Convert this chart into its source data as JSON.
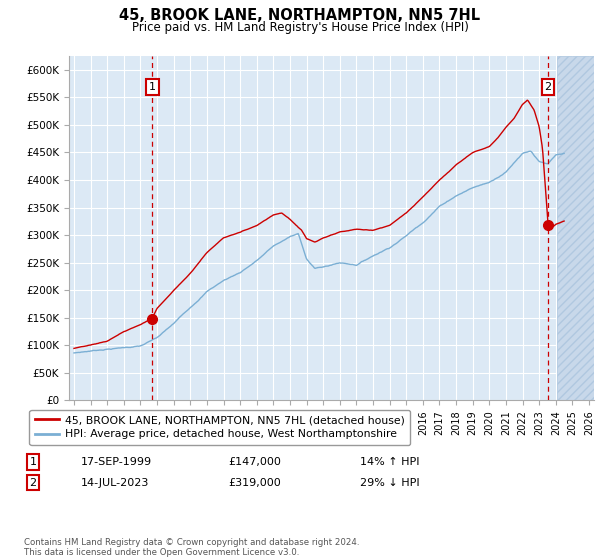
{
  "title": "45, BROOK LANE, NORTHAMPTON, NN5 7HL",
  "subtitle": "Price paid vs. HM Land Registry's House Price Index (HPI)",
  "ylabel_ticks": [
    "£0",
    "£50K",
    "£100K",
    "£150K",
    "£200K",
    "£250K",
    "£300K",
    "£350K",
    "£400K",
    "£450K",
    "£500K",
    "£550K",
    "£600K"
  ],
  "ytick_values": [
    0,
    50000,
    100000,
    150000,
    200000,
    250000,
    300000,
    350000,
    400000,
    450000,
    500000,
    550000,
    600000
  ],
  "ylim": [
    0,
    625000
  ],
  "xlim_start": 1994.7,
  "xlim_end": 2026.3,
  "xticks": [
    1995,
    1996,
    1997,
    1998,
    1999,
    2000,
    2001,
    2002,
    2003,
    2004,
    2005,
    2006,
    2007,
    2008,
    2009,
    2010,
    2011,
    2012,
    2013,
    2014,
    2015,
    2016,
    2017,
    2018,
    2019,
    2020,
    2021,
    2022,
    2023,
    2024,
    2025,
    2026
  ],
  "bg_color": "#dce9f5",
  "grid_color": "#ffffff",
  "red_line_color": "#cc0000",
  "blue_line_color": "#7bafd4",
  "legend_label_red": "45, BROOK LANE, NORTHAMPTON, NN5 7HL (detached house)",
  "legend_label_blue": "HPI: Average price, detached house, West Northamptonshire",
  "purchase1_date": "17-SEP-1999",
  "purchase1_price": "£147,000",
  "purchase1_hpi": "14% ↑ HPI",
  "purchase2_date": "14-JUL-2023",
  "purchase2_price": "£319,000",
  "purchase2_hpi": "29% ↓ HPI",
  "footer": "Contains HM Land Registry data © Crown copyright and database right 2024.\nThis data is licensed under the Open Government Licence v3.0.",
  "purchase1_x": 1999.72,
  "purchase2_x": 2023.54,
  "purchase1_y": 147000,
  "purchase2_y": 319000,
  "hatch_start": 2024.08
}
